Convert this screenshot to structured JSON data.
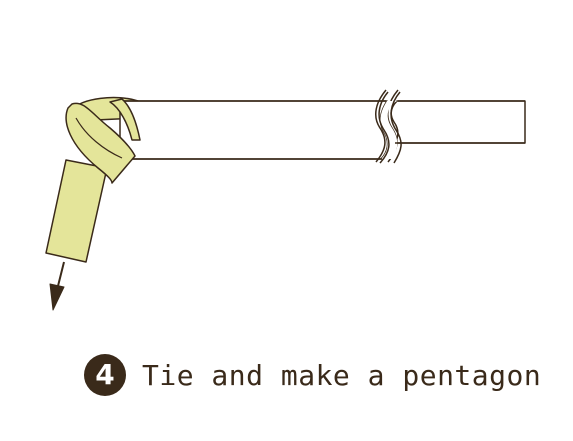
{
  "step": {
    "number": "4",
    "text": "Tie and make a pentagon"
  },
  "colors": {
    "outline": "#3a2a1a",
    "ribbon_fill": "#e4e59a",
    "bar_fill": "#ffffff",
    "badge_bg": "#3a2a1a",
    "badge_text": "#ffffff"
  },
  "icons": {
    "direction": "arrow-down-icon",
    "break_mark": "wavy-break-icon"
  }
}
